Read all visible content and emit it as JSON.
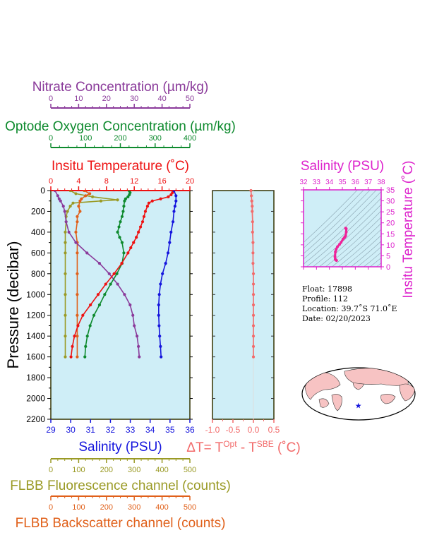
{
  "colors": {
    "nitrate": "#8a3a9a",
    "oxygen": "#0e8a2e",
    "temperature": "#ee1111",
    "salinity": "#1515dd",
    "fluorescence": "#9a9a25",
    "backscatter": "#e0601a",
    "delta": "#f26b6b",
    "ts_axis": "#dd22cc",
    "ts_line": "#ee2299",
    "panel_bg": "#cfeef7",
    "axis_dark": "#333300"
  },
  "chart_data": [
    {
      "type": "line",
      "title": "",
      "ylabel": "Pressure (decibar)",
      "ylim": [
        2200,
        0
      ],
      "yticks": [
        "0",
        "200",
        "400",
        "600",
        "800",
        "1000",
        "1200",
        "1400",
        "1600",
        "1800",
        "2000",
        "2200"
      ],
      "grid": false,
      "axes": {
        "nitrate": {
          "label": "Nitrate Concentration (µm/kg)",
          "range": [
            0,
            50
          ],
          "ticks": [
            "0",
            "10",
            "20",
            "30",
            "40",
            "50"
          ]
        },
        "oxygen": {
          "label": "Optode Oxygen Concentration (µm/kg)",
          "range": [
            0,
            400
          ],
          "ticks": [
            "0",
            "100",
            "200",
            "300",
            "400"
          ]
        },
        "temperature": {
          "label": "Insitu Temperature (˚C)",
          "range": [
            0,
            20
          ],
          "ticks": [
            "0",
            "4",
            "8",
            "12",
            "16",
            "20"
          ]
        },
        "salinity": {
          "label": "Salinity (PSU)",
          "range": [
            29,
            36
          ],
          "ticks": [
            "29",
            "30",
            "31",
            "32",
            "33",
            "34",
            "35",
            "36"
          ]
        },
        "fluorescence": {
          "label": "FLBB Fluorescence channel (counts)",
          "range": [
            0,
            500
          ],
          "ticks": [
            "0",
            "100",
            "200",
            "300",
            "400",
            "500"
          ]
        },
        "backscatter": {
          "label": "FLBB Backscatter channel (counts)",
          "range": [
            0,
            500
          ],
          "ticks": [
            "0",
            "100",
            "200",
            "300",
            "400",
            "500"
          ]
        }
      },
      "series": [
        {
          "name": "temperature",
          "pressure": [
            0,
            20,
            40,
            60,
            80,
            100,
            120,
            150,
            200,
            250,
            300,
            350,
            400,
            450,
            500,
            550,
            600,
            700,
            800,
            900,
            1000,
            1100,
            1200,
            1300,
            1400,
            1500,
            1600
          ],
          "values": [
            17.6,
            17.5,
            17.3,
            16.9,
            15.8,
            14.6,
            14.1,
            13.9,
            13.6,
            13.4,
            13.2,
            12.9,
            12.6,
            12.3,
            11.9,
            11.5,
            11.1,
            10.2,
            9.1,
            7.9,
            6.8,
            5.7,
            4.6,
            3.9,
            3.4,
            3.1,
            2.9
          ]
        },
        {
          "name": "salinity",
          "pressure": [
            0,
            50,
            100,
            150,
            200,
            300,
            400,
            500,
            600,
            700,
            800,
            900,
            1000,
            1100,
            1200,
            1300,
            1400,
            1500,
            1600
          ],
          "values": [
            35.2,
            35.3,
            35.3,
            35.25,
            35.2,
            35.15,
            35.05,
            34.98,
            34.9,
            34.78,
            34.62,
            34.52,
            34.46,
            34.43,
            34.43,
            34.45,
            34.48,
            34.52,
            34.55
          ]
        },
        {
          "name": "oxygen",
          "pressure": [
            0,
            20,
            40,
            60,
            80,
            100,
            150,
            200,
            250,
            300,
            350,
            400,
            450,
            500,
            600,
            700,
            800,
            900,
            1000,
            1100,
            1200,
            1300,
            1400,
            1500,
            1600
          ],
          "values": [
            225,
            228,
            226,
            222,
            215,
            212,
            210,
            208,
            205,
            200,
            196,
            192,
            198,
            205,
            210,
            205,
            190,
            172,
            155,
            140,
            124,
            113,
            105,
            100,
            98
          ]
        },
        {
          "name": "nitrate",
          "pressure": [
            0,
            50,
            80,
            100,
            150,
            200,
            300,
            400,
            500,
            600,
            700,
            800,
            900,
            1000,
            1100,
            1200,
            1300,
            1400,
            1500,
            1600
          ],
          "values": [
            1.5,
            2.5,
            3,
            3.5,
            4.5,
            5,
            5.5,
            6.5,
            9,
            13,
            17.5,
            21,
            24,
            26.5,
            28.5,
            29.5,
            30,
            31,
            31.5,
            31.8
          ]
        },
        {
          "name": "fluorescence",
          "pressure": [
            0,
            30,
            60,
            90,
            100,
            120,
            150,
            200,
            250,
            300,
            400,
            500,
            600,
            800,
            1000,
            1200,
            1400,
            1600
          ],
          "values": [
            70,
            90,
            150,
            240,
            180,
            80,
            70,
            60,
            55,
            55,
            52,
            52,
            52,
            52,
            52,
            52,
            52,
            52
          ]
        },
        {
          "name": "backscatter",
          "pressure": [
            0,
            30,
            50,
            80,
            100,
            150,
            200,
            250,
            300,
            400,
            500,
            600,
            800,
            1000,
            1200,
            1400,
            1600
          ],
          "values": [
            120,
            140,
            125,
            110,
            105,
            100,
            105,
            95,
            95,
            90,
            95,
            95,
            95,
            95,
            95,
            95,
            95
          ]
        }
      ]
    },
    {
      "type": "line",
      "title": "",
      "xlabel_parts": [
        "ΔT= T",
        "Opt",
        " - T",
        "SBE",
        " (˚C)"
      ],
      "xlim": [
        -1.0,
        0.5
      ],
      "xticks": [
        "-1.0",
        "-0.5",
        "0.0",
        "0.5"
      ],
      "ylim": [
        2200,
        0
      ],
      "series": [
        {
          "name": "delta",
          "pressure": [
            0,
            50,
            100,
            150,
            200,
            300,
            400,
            500,
            600,
            700,
            800,
            900,
            1000,
            1100,
            1200,
            1300,
            1400,
            1500,
            1600
          ],
          "values": [
            -0.06,
            -0.05,
            -0.04,
            -0.03,
            -0.03,
            -0.02,
            -0.02,
            -0.01,
            -0.01,
            -0.01,
            0.0,
            0.0,
            0.0,
            0.0,
            0.0,
            0.0,
            0.0,
            0.0,
            0.0
          ]
        }
      ]
    },
    {
      "type": "scatter",
      "title": "",
      "xlabel": "Salinity (PSU)",
      "ylabel": "Insitu Temperature (˚C)",
      "xlim": [
        32,
        38
      ],
      "ylim": [
        0,
        35
      ],
      "xticks": [
        "32",
        "33",
        "34",
        "35",
        "36",
        "37",
        "38"
      ],
      "yticks": [
        "0",
        "5",
        "10",
        "15",
        "20",
        "25",
        "30",
        "35"
      ],
      "series": [
        {
          "name": "ts",
          "salinity": [
            34.55,
            34.5,
            34.45,
            34.43,
            34.46,
            34.52,
            34.62,
            34.78,
            34.9,
            35.05,
            35.15,
            35.2,
            35.25,
            35.3,
            35.3,
            35.25
          ],
          "temperature": [
            2.9,
            3.1,
            3.4,
            4.6,
            6.8,
            7.9,
            9.1,
            10.2,
            11.1,
            12.6,
            13.2,
            13.6,
            14.1,
            15.8,
            17.3,
            17.6
          ]
        }
      ]
    }
  ],
  "info": {
    "float": "Float:  17898",
    "profile": "Profile:  112",
    "location": "Location:  39.7˚S  71.0˚E",
    "date": "Date:  02/20/2023"
  },
  "map": {
    "marker_lat": -39.7,
    "marker_lon": 71.0
  }
}
